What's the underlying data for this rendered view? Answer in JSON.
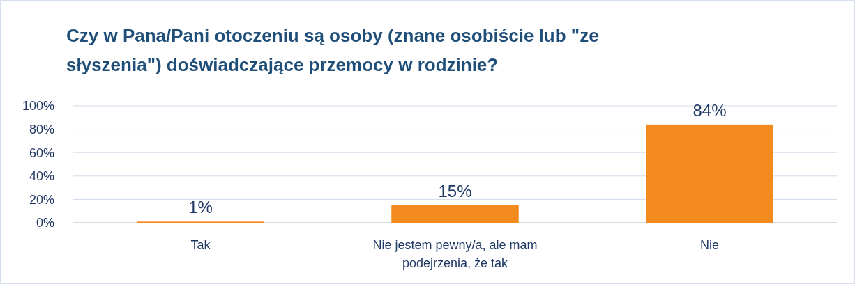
{
  "chart_data": {
    "type": "bar",
    "title": "Czy w Pana/Pani otoczeniu są osoby (znane osobiście lub \"ze słyszenia\") doświadczające przemocy w rodzinie?",
    "categories": [
      "Tak",
      "Nie jestem pewny/a, ale mam podejrzenia, że tak",
      "Nie"
    ],
    "values": [
      1,
      15,
      84
    ],
    "color": "#f28a1e",
    "value_labels": [
      "1%",
      "15%",
      "84%"
    ],
    "ylim": [
      0,
      100
    ],
    "yticks": [
      {
        "value": 0,
        "label": "0%"
      },
      {
        "value": 20,
        "label": "20%"
      },
      {
        "value": 40,
        "label": "40%"
      },
      {
        "value": 60,
        "label": "60%"
      },
      {
        "value": 80,
        "label": "80%"
      },
      {
        "value": 100,
        "label": "100%"
      }
    ],
    "grid": "y"
  }
}
